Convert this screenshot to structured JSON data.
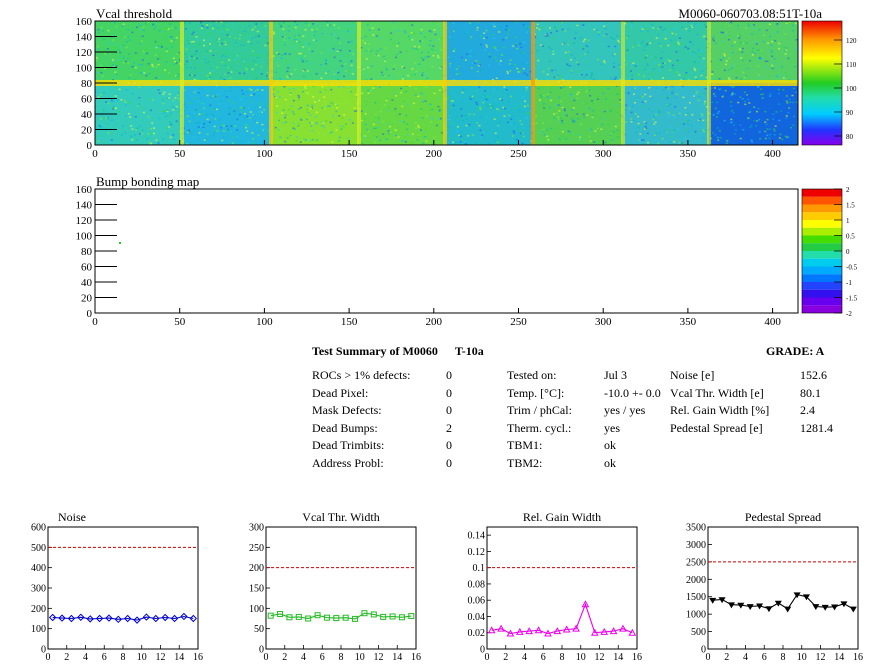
{
  "top_map": {
    "title": "Vcal threshold",
    "right_title": "M0060-060703.08:51T-10a",
    "x_ticks": [
      "0",
      "50",
      "100",
      "150",
      "200",
      "250",
      "300",
      "350",
      "400"
    ],
    "y_ticks": [
      "0",
      "20",
      "40",
      "60",
      "80",
      "100",
      "120",
      "140",
      "160"
    ],
    "colorbar_ticks": [
      "120",
      "110",
      "100",
      "90",
      "80"
    ]
  },
  "bump_map": {
    "title": "Bump bonding map",
    "x_ticks": [
      "0",
      "50",
      "100",
      "150",
      "200",
      "250",
      "300",
      "350",
      "400"
    ],
    "y_ticks": [
      "0",
      "20",
      "40",
      "60",
      "80",
      "100",
      "120",
      "140",
      "160"
    ],
    "colorbar_ticks": [
      "2",
      "1.5",
      "1",
      "0.5",
      "0",
      "-0.5",
      "-1",
      "-1.5",
      "-2"
    ]
  },
  "summary": {
    "heading": "Test Summary of M0060",
    "heading_tag": "T-10a",
    "grade": "GRADE:  A",
    "col1": [
      {
        "label": "ROCs > 1% defects:",
        "value": "0"
      },
      {
        "label": "Dead Pixel:",
        "value": "0"
      },
      {
        "label": "Mask Defects:",
        "value": "0"
      },
      {
        "label": "Dead Bumps:",
        "value": "2"
      },
      {
        "label": "Dead Trimbits:",
        "value": "0"
      },
      {
        "label": "Address Probl:",
        "value": "0"
      }
    ],
    "col2": [
      {
        "label": "Tested on:",
        "value": "Jul 3"
      },
      {
        "label": "Temp. [°C]:",
        "value": "-10.0 +- 0.0"
      },
      {
        "label": "Trim / phCal:",
        "value": "yes / yes"
      },
      {
        "label": "Therm. cycl.:",
        "value": "yes"
      },
      {
        "label": "TBM1:",
        "value": "ok"
      },
      {
        "label": "TBM2:",
        "value": "ok"
      }
    ],
    "col3": [
      {
        "label": "Noise [e]",
        "value": "152.6"
      },
      {
        "label": "Vcal Thr. Width [e]",
        "value": "80.1"
      },
      {
        "label": "Rel. Gain Width [%]",
        "value": "2.4"
      },
      {
        "label": "Pedestal Spread [e]",
        "value": "1281.4"
      }
    ]
  },
  "colors": {
    "noise": "#0000cc",
    "vcal": "#22bb22",
    "gain": "#ee00ee",
    "pedestal": "#000000",
    "limit": "#cc0000"
  },
  "chart_data": [
    {
      "type": "line",
      "title": "Noise",
      "x": [
        0.5,
        1.5,
        2.5,
        3.5,
        4.5,
        5.5,
        6.5,
        7.5,
        8.5,
        9.5,
        10.5,
        11.5,
        12.5,
        13.5,
        14.5,
        15.5
      ],
      "values": [
        155,
        152,
        150,
        156,
        148,
        150,
        152,
        146,
        150,
        142,
        157,
        150,
        155,
        150,
        160,
        150
      ],
      "limit": 500,
      "xlim": [
        0,
        16
      ],
      "ylim": [
        0,
        600
      ],
      "x_ticks": [
        "0",
        "2",
        "4",
        "6",
        "8",
        "10",
        "12",
        "14",
        "16"
      ],
      "y_ticks": [
        "0",
        "100",
        "200",
        "300",
        "400",
        "500",
        "600"
      ],
      "y_tick_values": [
        0,
        100,
        200,
        300,
        400,
        500,
        600
      ],
      "marker": "diamond"
    },
    {
      "type": "line",
      "title": "Vcal Thr. Width",
      "x": [
        0.5,
        1.5,
        2.5,
        3.5,
        4.5,
        5.5,
        6.5,
        7.5,
        8.5,
        9.5,
        10.5,
        11.5,
        12.5,
        13.5,
        14.5,
        15.5
      ],
      "values": [
        82,
        86,
        78,
        79,
        75,
        83,
        77,
        76,
        77,
        74,
        88,
        85,
        79,
        80,
        78,
        81
      ],
      "limit": 200,
      "xlim": [
        0,
        16
      ],
      "ylim": [
        0,
        300
      ],
      "x_ticks": [
        "0",
        "2",
        "4",
        "6",
        "8",
        "10",
        "12",
        "14",
        "16"
      ],
      "y_ticks": [
        "0",
        "50",
        "100",
        "150",
        "200",
        "250",
        "300"
      ],
      "y_tick_values": [
        0,
        50,
        100,
        150,
        200,
        250,
        300
      ],
      "marker": "square"
    },
    {
      "type": "line",
      "title": "Rel. Gain Width",
      "x": [
        0.5,
        1.5,
        2.5,
        3.5,
        4.5,
        5.5,
        6.5,
        7.5,
        8.5,
        9.5,
        10.5,
        11.5,
        12.5,
        13.5,
        14.5,
        15.5
      ],
      "values": [
        0.023,
        0.025,
        0.019,
        0.021,
        0.022,
        0.023,
        0.019,
        0.022,
        0.024,
        0.025,
        0.055,
        0.02,
        0.021,
        0.022,
        0.025,
        0.02
      ],
      "limit": 0.1,
      "xlim": [
        0,
        16
      ],
      "ylim": [
        0,
        0.15
      ],
      "x_ticks": [
        "0",
        "2",
        "4",
        "6",
        "8",
        "10",
        "12",
        "14",
        "16"
      ],
      "y_ticks": [
        "0",
        "0.02",
        "0.04",
        "0.06",
        "0.08",
        "0.1",
        "0.12",
        "0.14"
      ],
      "y_tick_values": [
        0,
        0.02,
        0.04,
        0.06,
        0.08,
        0.1,
        0.12,
        0.14
      ],
      "marker": "triangle"
    },
    {
      "type": "line",
      "title": "Pedestal Spread",
      "x": [
        0.5,
        1.5,
        2.5,
        3.5,
        4.5,
        5.5,
        6.5,
        7.5,
        8.5,
        9.5,
        10.5,
        11.5,
        12.5,
        13.5,
        14.5,
        15.5
      ],
      "values": [
        1400,
        1420,
        1270,
        1260,
        1220,
        1240,
        1160,
        1320,
        1150,
        1560,
        1500,
        1220,
        1200,
        1210,
        1300,
        1150
      ],
      "limit": 2500,
      "xlim": [
        0,
        16
      ],
      "ylim": [
        0,
        3500
      ],
      "x_ticks": [
        "0",
        "2",
        "4",
        "6",
        "8",
        "10",
        "12",
        "14",
        "16"
      ],
      "y_ticks": [
        "0",
        "500",
        "1000",
        "1500",
        "2000",
        "2500",
        "3000",
        "3500"
      ],
      "y_tick_values": [
        0,
        500,
        1000,
        1500,
        2000,
        2500,
        3000,
        3500
      ],
      "marker": "star"
    }
  ]
}
